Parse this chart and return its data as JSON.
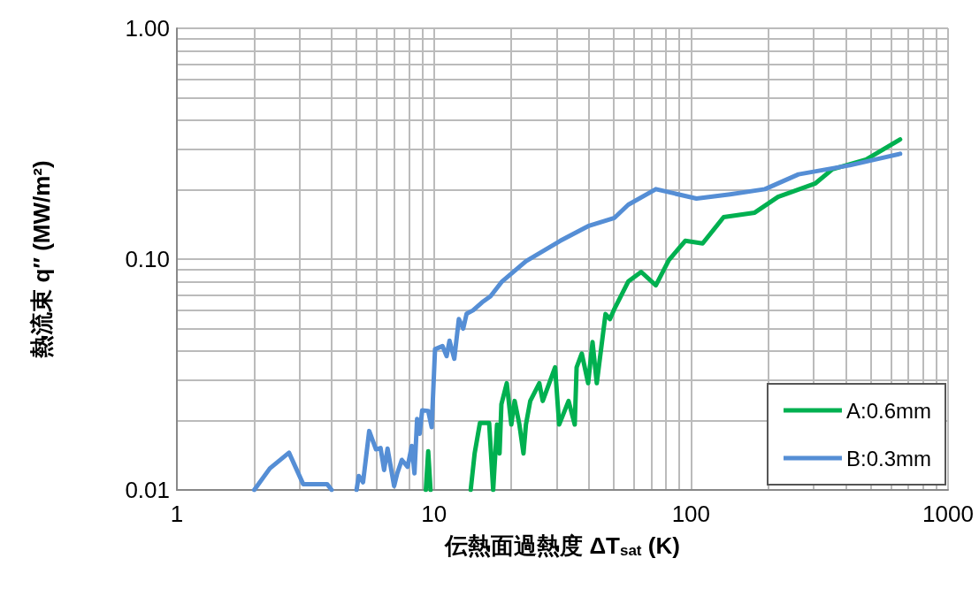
{
  "chart_data": {
    "type": "line",
    "xlabel": "伝熱面過熱度 ΔT$_{sat}$ (K)",
    "ylabel": "熱流束 q″ (MW/m²)",
    "log": "xy",
    "grid": true,
    "legend": "bottom right",
    "marker": "none",
    "line_style": "solid",
    "xlim": [
      1,
      1000
    ],
    "xticks": [
      1,
      10,
      100,
      1000
    ],
    "ylim": [
      0.01,
      1
    ],
    "yticks": [
      {
        "value": 0.01,
        "label": "0.01"
      },
      {
        "value": 0.1,
        "label": "0.10"
      },
      {
        "value": 1,
        "label": "1.00"
      }
    ],
    "series": [
      {
        "name": "A:0.6mm",
        "color": "#00b050",
        "x": [
          9.3,
          9.5,
          9.7,
          10,
          13.9,
          14.4,
          15.1,
          16.4,
          17.0,
          17.6,
          18.0,
          18.3,
          19.2,
          20.0,
          20.6,
          21.5,
          22.3,
          22.8,
          23.7,
          25.7,
          26.5,
          29.6,
          30.7,
          33.4,
          35.3,
          35.9,
          37.6,
          39.8,
          41.4,
          43,
          46.5,
          48.4,
          50.4,
          57,
          64,
          73,
          82,
          95,
          111,
          134,
          177,
          218,
          305,
          355,
          480,
          651
        ],
        "values": [
          0.01,
          0.0147,
          0.01,
          null,
          0.01,
          0.0144,
          0.0195,
          0.0195,
          0.01,
          0.0192,
          0.0144,
          0.0235,
          0.029,
          0.0192,
          0.0243,
          0.0192,
          0.0144,
          0.0192,
          0.0243,
          0.029,
          0.0243,
          0.034,
          0.0192,
          0.0243,
          0.0192,
          0.034,
          0.039,
          0.029,
          0.0437,
          0.029,
          0.0578,
          0.055,
          0.061,
          0.08,
          0.088,
          0.077,
          0.099,
          0.12,
          0.117,
          0.152,
          0.159,
          0.186,
          0.213,
          0.245,
          0.27,
          0.33
        ]
      },
      {
        "name": "B:0.3mm",
        "color": "#558ed5",
        "x": [
          2.0,
          2.3,
          2.73,
          3.1,
          3.84,
          4.0,
          4.5,
          5.0,
          5.1,
          5.3,
          5.6,
          5.95,
          6.2,
          6.4,
          6.6,
          7.0,
          7.2,
          7.5,
          7.9,
          8.2,
          8.4,
          8.6,
          8.8,
          9.0,
          9.5,
          9.8,
          10.1,
          10.8,
          11.2,
          11.5,
          12.0,
          12.5,
          13.0,
          13.4,
          14.2,
          15.4,
          16.6,
          18.4,
          22.8,
          31,
          39.8,
          50.4,
          57,
          73,
          105,
          142,
          194,
          262,
          415,
          520,
          651
        ],
        "values": [
          0.01,
          0.0124,
          0.0145,
          0.0106,
          0.0106,
          0.01,
          null,
          0.01,
          0.0115,
          0.0108,
          0.018,
          0.015,
          0.0152,
          0.0122,
          0.0151,
          0.0104,
          0.0118,
          0.0135,
          0.0126,
          0.0155,
          0.0118,
          0.0203,
          0.0175,
          0.0221,
          0.022,
          0.0187,
          0.0407,
          0.042,
          0.038,
          0.0443,
          0.037,
          0.055,
          0.05,
          0.058,
          0.06,
          0.065,
          0.069,
          0.08,
          0.098,
          0.12,
          0.139,
          0.151,
          0.172,
          0.201,
          0.183,
          0.191,
          0.201,
          0.233,
          0.255,
          0.27,
          0.286
        ]
      }
    ]
  }
}
